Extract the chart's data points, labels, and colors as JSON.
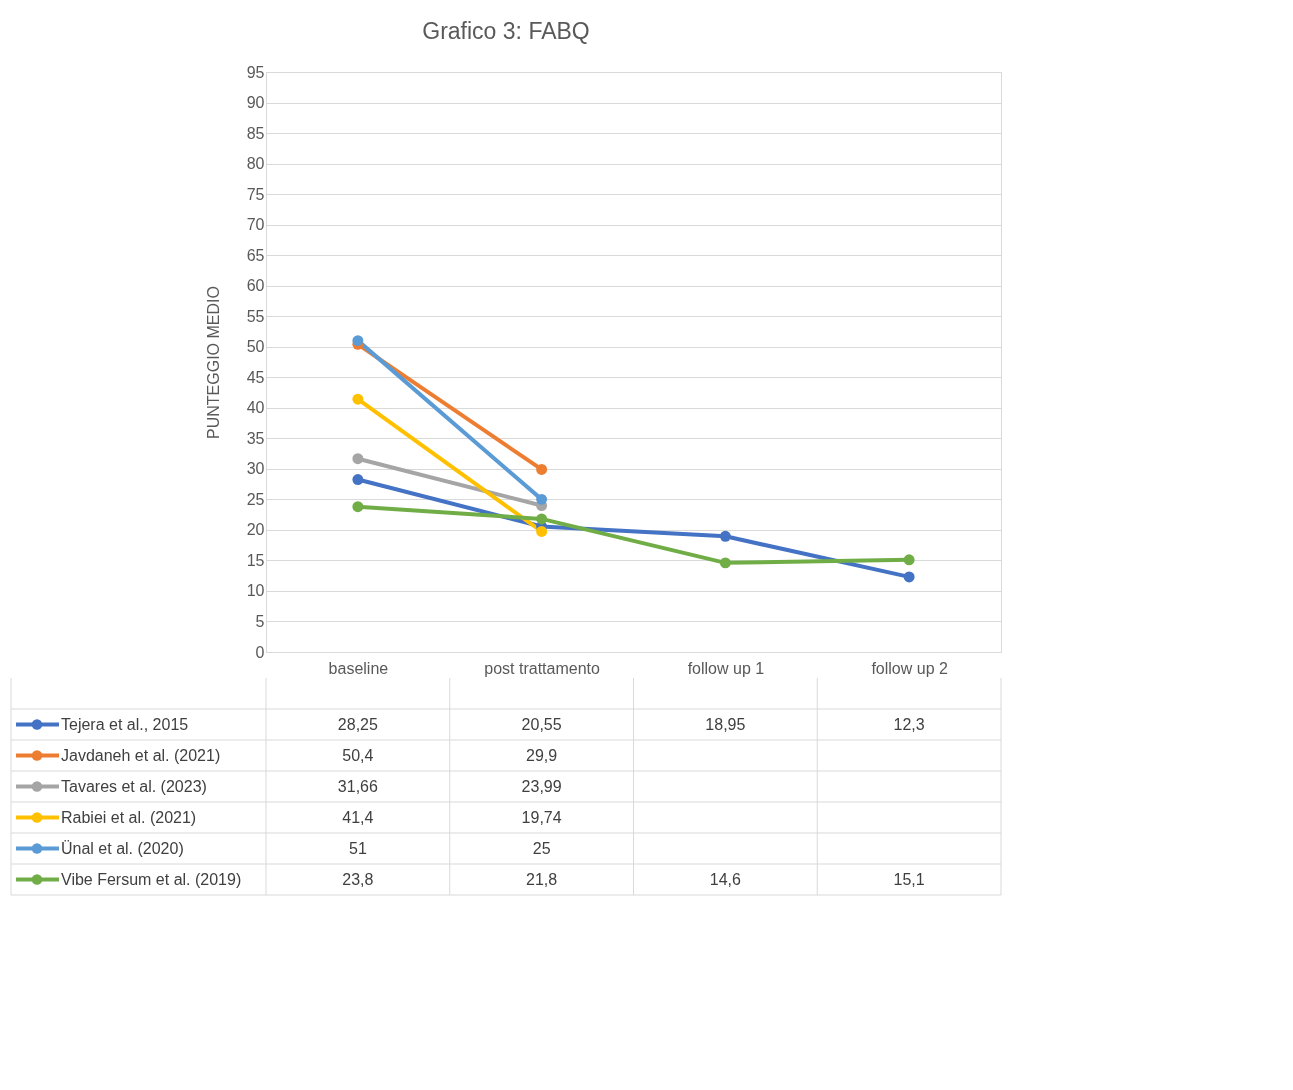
{
  "chart_data": {
    "type": "line",
    "title": "Grafico 3: FABQ",
    "ylabel": "PUNTEGGIO MEDIO",
    "categories": [
      "baseline",
      "post trattamento",
      "follow up 1",
      "follow up 2"
    ],
    "ylim": [
      0,
      95
    ],
    "yticks": [
      0,
      5,
      10,
      15,
      20,
      25,
      30,
      35,
      40,
      45,
      50,
      55,
      60,
      65,
      70,
      75,
      80,
      85,
      90,
      95
    ],
    "grid": "y",
    "legend": "bottom",
    "marker": "circle",
    "line_style": "solid",
    "series": [
      {
        "name": "Tejera et al., 2015",
        "color": "#4472c4",
        "values": [
          28.25,
          20.55,
          18.95,
          12.3
        ],
        "value_labels": [
          "28,25",
          "20,55",
          "18,95",
          "12,3"
        ]
      },
      {
        "name": "Javdaneh et al. (2021)",
        "color": "#ed7d31",
        "values": [
          50.4,
          29.9,
          null,
          null
        ],
        "value_labels": [
          "50,4",
          "29,9",
          null,
          null
        ]
      },
      {
        "name": "Tavares et al. (2023)",
        "color": "#a5a5a5",
        "values": [
          31.66,
          23.99,
          null,
          null
        ],
        "value_labels": [
          "31,66",
          "23,99",
          null,
          null
        ]
      },
      {
        "name": "Rabiei et al. (2021)",
        "color": "#ffc000",
        "values": [
          41.4,
          19.74,
          null,
          null
        ],
        "value_labels": [
          "41,4",
          "19,74",
          null,
          null
        ]
      },
      {
        "name": "Ünal et al. (2020)",
        "color": "#5b9bd5",
        "values": [
          51,
          25,
          null,
          null
        ],
        "value_labels": [
          "51",
          "25",
          null,
          null
        ]
      },
      {
        "name": "Vibe Fersum et al. (2019)",
        "color": "#70ad47",
        "values": [
          23.8,
          21.8,
          14.6,
          15.1
        ],
        "value_labels": [
          "23,8",
          "21,8",
          "14,6",
          "15,1"
        ]
      }
    ]
  }
}
